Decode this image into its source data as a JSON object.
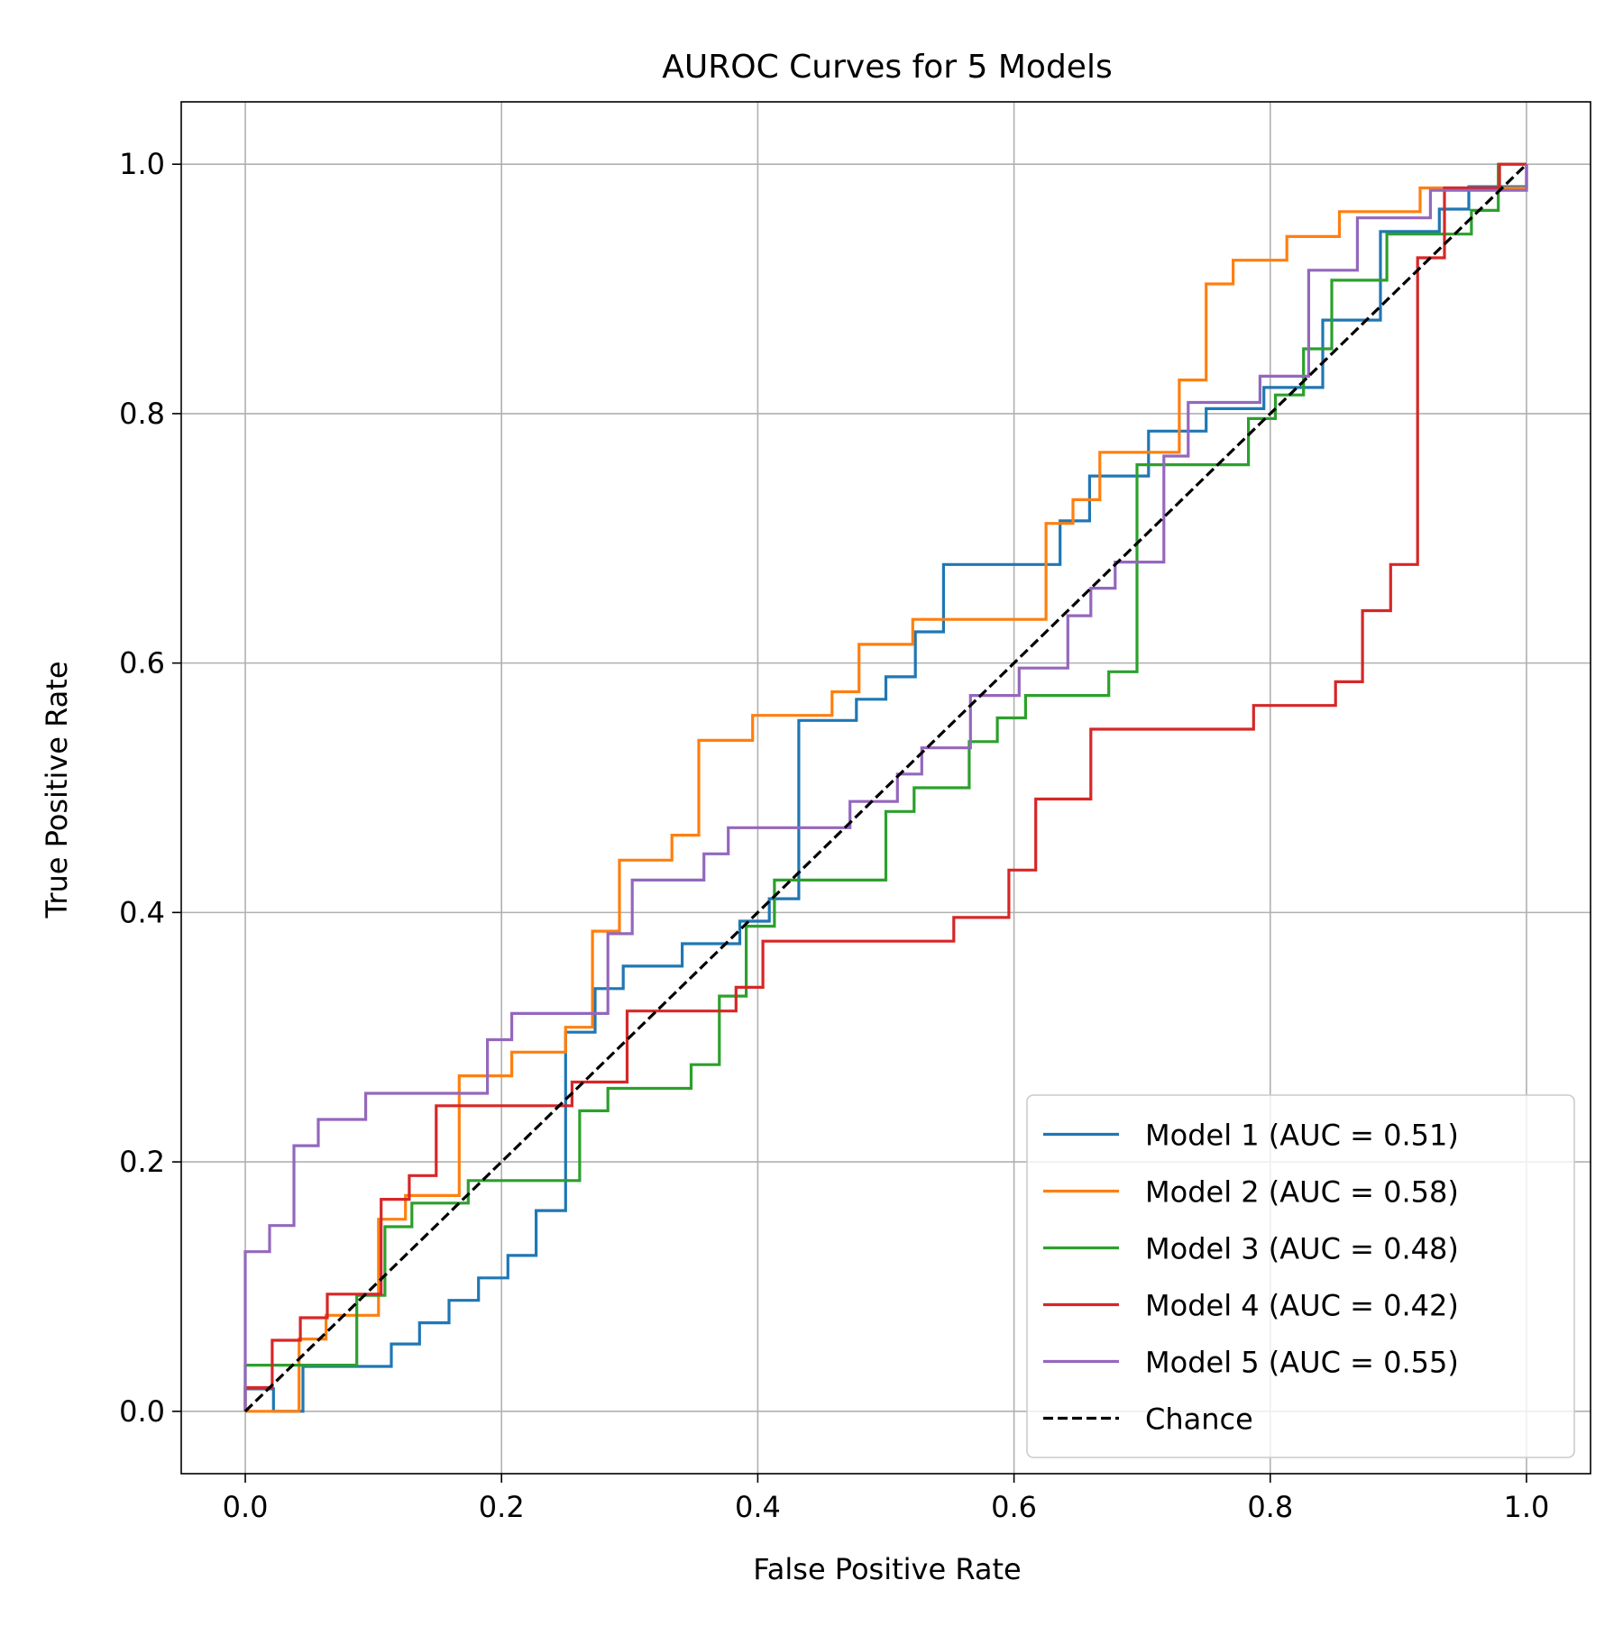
{
  "chart_data": {
    "type": "line",
    "title": "AUROC Curves for 5 Models",
    "xlabel": "False Positive Rate",
    "ylabel": "True Positive Rate",
    "xlim": [
      -0.05,
      1.05
    ],
    "ylim": [
      -0.05,
      1.05
    ],
    "xticks": [
      "0.0",
      "0.2",
      "0.4",
      "0.6",
      "0.8",
      "1.0"
    ],
    "yticks": [
      "0.0",
      "0.2",
      "0.4",
      "0.6",
      "0.8",
      "1.0"
    ],
    "grid": true,
    "legend_position": "lower right",
    "series": [
      {
        "name": "Model 1 (AUC = 0.51)",
        "color": "#1f77b4",
        "x": [
          0.0,
          0.0,
          0.022,
          0.022,
          0.045,
          0.045,
          0.114,
          0.114,
          0.136,
          0.136,
          0.159,
          0.159,
          0.182,
          0.182,
          0.205,
          0.205,
          0.227,
          0.227,
          0.25,
          0.25,
          0.273,
          0.273,
          0.295,
          0.295,
          0.341,
          0.341,
          0.386,
          0.386,
          0.409,
          0.409,
          0.432,
          0.432,
          0.477,
          0.477,
          0.5,
          0.5,
          0.523,
          0.523,
          0.545,
          0.545,
          0.636,
          0.636,
          0.659,
          0.659,
          0.705,
          0.705,
          0.75,
          0.75,
          0.795,
          0.795,
          0.841,
          0.841,
          0.886,
          0.886,
          0.932,
          0.932,
          0.955,
          0.955,
          1.0,
          1.0
        ],
        "y": [
          0.0,
          0.018,
          0.018,
          0.0,
          0.0,
          0.036,
          0.036,
          0.054,
          0.054,
          0.071,
          0.071,
          0.089,
          0.089,
          0.107,
          0.107,
          0.125,
          0.125,
          0.161,
          0.161,
          0.304,
          0.304,
          0.339,
          0.339,
          0.357,
          0.357,
          0.375,
          0.375,
          0.393,
          0.393,
          0.411,
          0.411,
          0.554,
          0.554,
          0.571,
          0.571,
          0.589,
          0.589,
          0.625,
          0.625,
          0.679,
          0.679,
          0.714,
          0.714,
          0.75,
          0.75,
          0.786,
          0.786,
          0.804,
          0.804,
          0.821,
          0.821,
          0.875,
          0.875,
          0.946,
          0.946,
          0.964,
          0.964,
          0.982,
          0.982,
          1.0
        ]
      },
      {
        "name": "Model 2 (AUC = 0.58)",
        "color": "#ff7f0e",
        "x": [
          0.0,
          0.0,
          0.042,
          0.042,
          0.063,
          0.063,
          0.104,
          0.104,
          0.125,
          0.125,
          0.167,
          0.167,
          0.208,
          0.208,
          0.25,
          0.25,
          0.271,
          0.271,
          0.292,
          0.292,
          0.333,
          0.333,
          0.354,
          0.354,
          0.396,
          0.396,
          0.458,
          0.458,
          0.479,
          0.479,
          0.521,
          0.521,
          0.625,
          0.625,
          0.646,
          0.646,
          0.667,
          0.667,
          0.729,
          0.729,
          0.75,
          0.75,
          0.771,
          0.771,
          0.813,
          0.813,
          0.854,
          0.854,
          0.917,
          0.917,
          1.0,
          1.0
        ],
        "y": [
          0.0,
          0.0,
          0.0,
          0.058,
          0.058,
          0.077,
          0.077,
          0.154,
          0.154,
          0.173,
          0.173,
          0.269,
          0.269,
          0.288,
          0.288,
          0.308,
          0.308,
          0.385,
          0.385,
          0.442,
          0.442,
          0.462,
          0.462,
          0.538,
          0.538,
          0.558,
          0.558,
          0.577,
          0.577,
          0.615,
          0.615,
          0.635,
          0.635,
          0.712,
          0.712,
          0.731,
          0.731,
          0.769,
          0.769,
          0.827,
          0.827,
          0.904,
          0.904,
          0.923,
          0.923,
          0.942,
          0.942,
          0.962,
          0.962,
          0.981,
          0.981,
          1.0
        ]
      },
      {
        "name": "Model 3 (AUC = 0.48)",
        "color": "#2ca02c",
        "x": [
          0.0,
          0.0,
          0.087,
          0.087,
          0.109,
          0.109,
          0.13,
          0.13,
          0.174,
          0.174,
          0.261,
          0.261,
          0.283,
          0.283,
          0.348,
          0.348,
          0.37,
          0.37,
          0.391,
          0.391,
          0.413,
          0.413,
          0.5,
          0.5,
          0.522,
          0.522,
          0.565,
          0.565,
          0.587,
          0.587,
          0.609,
          0.609,
          0.674,
          0.674,
          0.696,
          0.696,
          0.783,
          0.783,
          0.804,
          0.804,
          0.826,
          0.826,
          0.848,
          0.848,
          0.87,
          0.87,
          0.891,
          0.891,
          0.935,
          0.935,
          0.957,
          0.957,
          0.978,
          0.978,
          1.0,
          1.0
        ],
        "y": [
          0.0,
          0.037,
          0.037,
          0.093,
          0.093,
          0.148,
          0.148,
          0.167,
          0.167,
          0.185,
          0.185,
          0.241,
          0.241,
          0.259,
          0.259,
          0.278,
          0.278,
          0.333,
          0.333,
          0.389,
          0.389,
          0.426,
          0.426,
          0.481,
          0.481,
          0.5,
          0.5,
          0.537,
          0.537,
          0.556,
          0.556,
          0.574,
          0.574,
          0.593,
          0.593,
          0.759,
          0.759,
          0.796,
          0.796,
          0.815,
          0.815,
          0.852,
          0.852,
          0.907,
          0.907,
          0.907,
          0.907,
          0.944,
          0.944,
          0.944,
          0.944,
          0.963,
          0.963,
          1.0,
          1.0,
          1.0
        ]
      },
      {
        "name": "Model 4 (AUC = 0.42)",
        "color": "#d62728",
        "x": [
          0.0,
          0.0,
          0.021,
          0.021,
          0.043,
          0.043,
          0.064,
          0.064,
          0.106,
          0.106,
          0.128,
          0.128,
          0.149,
          0.149,
          0.255,
          0.255,
          0.298,
          0.298,
          0.383,
          0.383,
          0.404,
          0.404,
          0.553,
          0.553,
          0.596,
          0.596,
          0.617,
          0.617,
          0.66,
          0.66,
          0.787,
          0.787,
          0.851,
          0.851,
          0.872,
          0.872,
          0.894,
          0.894,
          0.915,
          0.915,
          0.936,
          0.936,
          0.979,
          0.979,
          1.0,
          1.0
        ],
        "y": [
          0.0,
          0.019,
          0.019,
          0.057,
          0.057,
          0.075,
          0.075,
          0.094,
          0.094,
          0.17,
          0.17,
          0.189,
          0.189,
          0.245,
          0.245,
          0.264,
          0.264,
          0.321,
          0.321,
          0.34,
          0.34,
          0.377,
          0.377,
          0.396,
          0.396,
          0.434,
          0.434,
          0.491,
          0.491,
          0.547,
          0.547,
          0.566,
          0.566,
          0.585,
          0.585,
          0.642,
          0.642,
          0.679,
          0.679,
          0.925,
          0.925,
          0.981,
          0.981,
          1.0,
          1.0,
          1.0
        ]
      },
      {
        "name": "Model 5 (AUC = 0.55)",
        "color": "#9467bd",
        "x": [
          0.0,
          0.0,
          0.019,
          0.019,
          0.038,
          0.038,
          0.057,
          0.057,
          0.094,
          0.094,
          0.189,
          0.189,
          0.208,
          0.208,
          0.283,
          0.283,
          0.302,
          0.302,
          0.358,
          0.358,
          0.377,
          0.377,
          0.472,
          0.472,
          0.509,
          0.509,
          0.528,
          0.528,
          0.566,
          0.566,
          0.604,
          0.604,
          0.642,
          0.642,
          0.66,
          0.66,
          0.679,
          0.679,
          0.717,
          0.717,
          0.736,
          0.736,
          0.792,
          0.792,
          0.83,
          0.83,
          0.868,
          0.868,
          0.925,
          0.925,
          0.943,
          0.943,
          1.0,
          1.0
        ],
        "y": [
          0.0,
          0.128,
          0.128,
          0.149,
          0.149,
          0.213,
          0.213,
          0.234,
          0.234,
          0.255,
          0.255,
          0.298,
          0.298,
          0.319,
          0.319,
          0.383,
          0.383,
          0.426,
          0.426,
          0.447,
          0.447,
          0.468,
          0.468,
          0.489,
          0.489,
          0.511,
          0.511,
          0.532,
          0.532,
          0.574,
          0.574,
          0.596,
          0.596,
          0.638,
          0.638,
          0.66,
          0.66,
          0.681,
          0.681,
          0.766,
          0.766,
          0.809,
          0.809,
          0.83,
          0.83,
          0.915,
          0.915,
          0.957,
          0.957,
          0.979,
          0.979,
          0.979,
          0.979,
          1.0
        ]
      },
      {
        "name": "Chance",
        "color": "#000000",
        "dashed": true,
        "x": [
          0.0,
          1.0
        ],
        "y": [
          0.0,
          1.0
        ]
      }
    ]
  }
}
